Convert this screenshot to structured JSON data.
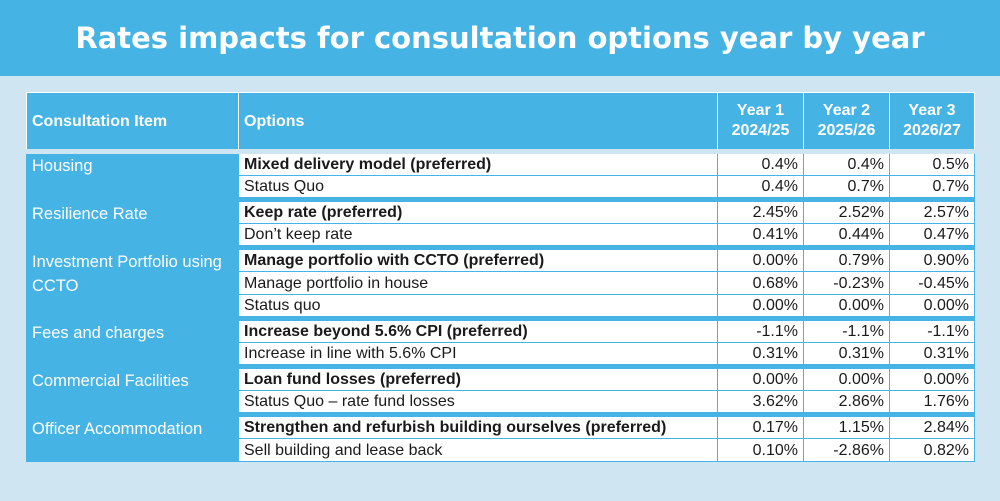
{
  "title": "Rates impacts for consultation options year by year",
  "headers": {
    "item": "Consultation Item",
    "options": "Options",
    "y1_label": "Year 1",
    "y1_period": "2024/25",
    "y2_label": "Year 2",
    "y2_period": "2025/26",
    "y3_label": "Year 3",
    "y3_period": "2026/27"
  },
  "groups": [
    {
      "item": "Housing",
      "rows": [
        {
          "option": "Mixed delivery model (preferred)",
          "preferred": true,
          "y1": "0.4%",
          "y2": "0.4%",
          "y3": "0.5%"
        },
        {
          "option": "Status Quo",
          "preferred": false,
          "y1": "0.4%",
          "y2": "0.7%",
          "y3": "0.7%"
        }
      ]
    },
    {
      "item": "Resilience Rate",
      "rows": [
        {
          "option": "Keep rate (preferred)",
          "preferred": true,
          "y1": "2.45%",
          "y2": "2.52%",
          "y3": "2.57%"
        },
        {
          "option": "Don’t keep rate",
          "preferred": false,
          "y1": "0.41%",
          "y2": "0.44%",
          "y3": "0.47%"
        }
      ]
    },
    {
      "item": "Investment Portfolio using CCTO",
      "rows": [
        {
          "option": "Manage portfolio with CCTO (preferred)",
          "preferred": true,
          "y1": "0.00%",
          "y2": "0.79%",
          "y3": "0.90%"
        },
        {
          "option": "Manage portfolio in house",
          "preferred": false,
          "y1": "0.68%",
          "y2": "-0.23%",
          "y3": "-0.45%"
        },
        {
          "option": "Status quo",
          "preferred": false,
          "y1": "0.00%",
          "y2": "0.00%",
          "y3": "0.00%"
        }
      ]
    },
    {
      "item": "Fees and charges",
      "rows": [
        {
          "option": "Increase beyond 5.6% CPI (preferred)",
          "preferred": true,
          "y1": "-1.1%",
          "y2": "-1.1%",
          "y3": "-1.1%"
        },
        {
          "option": "Increase in line with 5.6% CPI",
          "preferred": false,
          "y1": "0.31%",
          "y2": "0.31%",
          "y3": "0.31%"
        }
      ]
    },
    {
      "item": "Commercial Facilities",
      "rows": [
        {
          "option": "Loan fund losses (preferred)",
          "preferred": true,
          "y1": "0.00%",
          "y2": "0.00%",
          "y3": "0.00%"
        },
        {
          "option": "Status Quo – rate fund losses",
          "preferred": false,
          "y1": "3.62%",
          "y2": "2.86%",
          "y3": "1.76%"
        }
      ]
    },
    {
      "item": "Officer Accommodation",
      "rows": [
        {
          "option": "Strengthen and refurbish building ourselves (preferred)",
          "preferred": true,
          "y1": "0.17%",
          "y2": "1.15%",
          "y3": "2.84%"
        },
        {
          "option": "Sell building and lease back",
          "preferred": false,
          "y1": "0.10%",
          "y2": "-2.86%",
          "y3": "0.82%"
        }
      ]
    }
  ]
}
